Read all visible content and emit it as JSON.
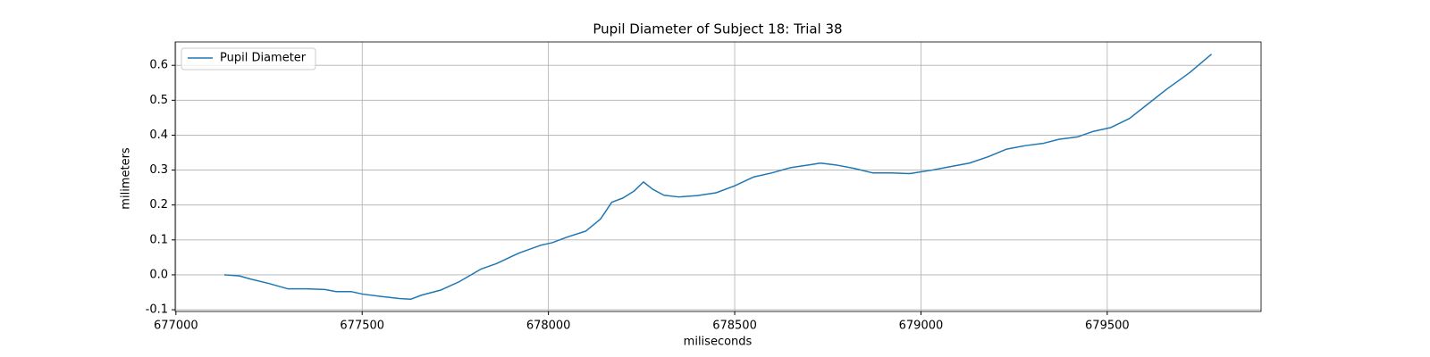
{
  "chart_data": {
    "type": "line",
    "title": "Pupil Diameter of Subject 18: Trial 38",
    "x_label": "miliseconds",
    "y_label": "milimeters",
    "x": [
      677130,
      677170,
      677200,
      677250,
      677300,
      677350,
      677400,
      677430,
      677470,
      677500,
      677550,
      677600,
      677630,
      677660,
      677710,
      677760,
      677820,
      677860,
      677920,
      677980,
      678010,
      678050,
      678100,
      678140,
      678170,
      678200,
      678230,
      678255,
      678280,
      678310,
      678350,
      678400,
      678450,
      678500,
      678550,
      678600,
      678650,
      678700,
      678730,
      678770,
      678820,
      678870,
      678920,
      678970,
      679030,
      679080,
      679130,
      679180,
      679230,
      679280,
      679330,
      679370,
      679420,
      679460,
      679510,
      679560,
      679610,
      679660,
      679720,
      679780
    ],
    "series": [
      {
        "name": "Pupil Diameter",
        "color": "#1f77b4",
        "values": [
          0.0,
          -0.003,
          -0.012,
          -0.025,
          -0.04,
          -0.04,
          -0.042,
          -0.048,
          -0.048,
          -0.055,
          -0.062,
          -0.068,
          -0.07,
          -0.058,
          -0.044,
          -0.02,
          0.017,
          0.032,
          0.062,
          0.085,
          0.092,
          0.108,
          0.125,
          0.16,
          0.208,
          0.22,
          0.24,
          0.266,
          0.245,
          0.228,
          0.223,
          0.227,
          0.235,
          0.255,
          0.28,
          0.292,
          0.307,
          0.315,
          0.32,
          0.315,
          0.305,
          0.292,
          0.292,
          0.29,
          0.3,
          0.31,
          0.32,
          0.338,
          0.36,
          0.37,
          0.377,
          0.388,
          0.395,
          0.41,
          0.422,
          0.448,
          0.49,
          0.532,
          0.578,
          0.632
        ]
      }
    ],
    "xlim": [
      676998,
      679913
    ],
    "ylim": [
      -0.105,
      0.667
    ],
    "xticks": [
      677000,
      677500,
      678000,
      678500,
      679000,
      679500
    ],
    "yticks": [
      -0.1,
      {
        "value": 0,
        "label": "0.0"
      },
      0.1,
      0.2,
      0.3,
      0.4,
      0.5,
      0.6
    ],
    "grid": true,
    "legend": "upper left"
  }
}
